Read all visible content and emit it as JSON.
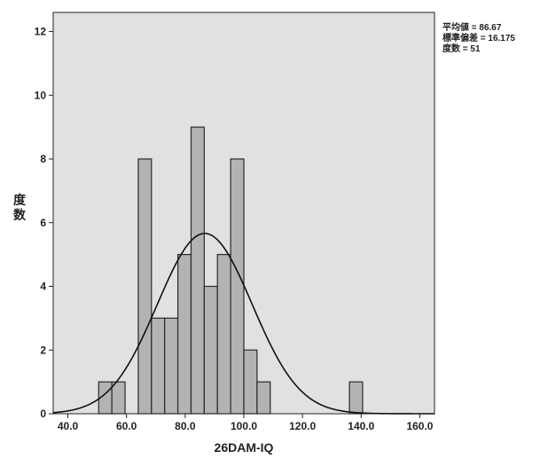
{
  "chart_data": {
    "type": "bar",
    "subtype": "histogram",
    "xlabel": "26DAM-IQ",
    "ylabel": "度数",
    "xlim": [
      35,
      165
    ],
    "ylim": [
      0,
      12.6
    ],
    "bin_width": 4.5,
    "x_ticks": [
      {
        "value": 40,
        "label": "40.0"
      },
      {
        "value": 60,
        "label": "60.0"
      },
      {
        "value": 80,
        "label": "80.0"
      },
      {
        "value": 100,
        "label": "100.0"
      },
      {
        "value": 120,
        "label": "120.0"
      },
      {
        "value": 140,
        "label": "140.0"
      },
      {
        "value": 160,
        "label": "160.0"
      }
    ],
    "y_ticks": [
      {
        "value": 0,
        "label": "0"
      },
      {
        "value": 2,
        "label": "2"
      },
      {
        "value": 4,
        "label": "4"
      },
      {
        "value": 6,
        "label": "6"
      },
      {
        "value": 8,
        "label": "8"
      },
      {
        "value": 10,
        "label": "10"
      },
      {
        "value": 12,
        "label": "12"
      }
    ],
    "bins": [
      {
        "start": 50.5,
        "end": 55.0,
        "count": 1
      },
      {
        "start": 55.0,
        "end": 59.5,
        "count": 1
      },
      {
        "start": 64.0,
        "end": 68.5,
        "count": 8
      },
      {
        "start": 68.5,
        "end": 73.0,
        "count": 3
      },
      {
        "start": 73.0,
        "end": 77.5,
        "count": 3
      },
      {
        "start": 77.5,
        "end": 82.0,
        "count": 5
      },
      {
        "start": 82.0,
        "end": 86.5,
        "count": 9
      },
      {
        "start": 86.5,
        "end": 91.0,
        "count": 4
      },
      {
        "start": 91.0,
        "end": 95.5,
        "count": 5
      },
      {
        "start": 95.5,
        "end": 100.0,
        "count": 8
      },
      {
        "start": 100.0,
        "end": 104.5,
        "count": 2
      },
      {
        "start": 104.5,
        "end": 109.0,
        "count": 1
      },
      {
        "start": 136.0,
        "end": 140.5,
        "count": 1
      }
    ],
    "normal_curve": {
      "mean": 86.67,
      "sd": 16.175,
      "n": 51
    },
    "stats_lines": [
      "平均値 = 86.67",
      "標準偏差 = 16.175",
      "度数 = 51"
    ],
    "grid": false,
    "colors": {
      "plot_background": "#e1e1e1",
      "bar_fill": "#b3b3b3",
      "bar_stroke": "#2a2a2a",
      "curve": "#111111"
    }
  }
}
